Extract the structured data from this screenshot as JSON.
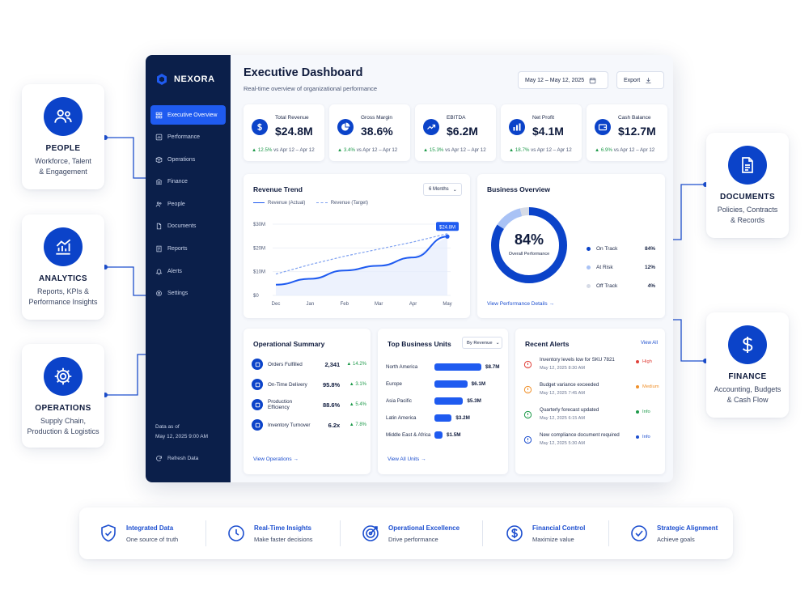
{
  "side_cards": {
    "people": {
      "title": "PEOPLE",
      "desc": "Workforce, Talent\n& Engagement"
    },
    "analytics": {
      "title": "ANALYTICS",
      "desc": "Reports, KPIs &\nPerformance Insights"
    },
    "operations": {
      "title": "OPERATIONS",
      "desc": "Supply Chain,\nProduction & Logistics"
    },
    "documents": {
      "title": "DOCUMENTS",
      "desc": "Policies, Contracts\n& Records"
    },
    "finance": {
      "title": "FINANCE",
      "desc": "Accounting, Budgets\n& Cash Flow"
    }
  },
  "app": {
    "brand": "NEXORA",
    "nav": [
      "Executive Overview",
      "Performance",
      "Operations",
      "Finance",
      "People",
      "Documents",
      "Reports",
      "Alerts",
      "Settings"
    ],
    "sync_label": "Data as of",
    "sync_time": "May 12, 2025 9:00 AM",
    "refresh_label": "Refresh Data",
    "title": "Executive Dashboard",
    "subtitle": "Real-time overview of organizational performance",
    "date_range": "May 12 – May 12, 2025",
    "export_label": "Export",
    "kpis": [
      {
        "label": "Total Revenue",
        "value": "$24.8M",
        "delta": "▲ 12.5%",
        "compare": "vs Apr 12 – Apr 12",
        "icon": "dollar-icon"
      },
      {
        "label": "Gross Margin",
        "value": "38.6%",
        "delta": "▲ 3.4%",
        "compare": "vs Apr 12 – Apr 12",
        "icon": "pie-icon"
      },
      {
        "label": "EBITDA",
        "value": "$6.2M",
        "delta": "▲ 15.3%",
        "compare": "vs Apr 12 – Apr 12",
        "icon": "trend-icon"
      },
      {
        "label": "Net Profit",
        "value": "$4.1M",
        "delta": "▲ 18.7%",
        "compare": "vs Apr 12 – Apr 12",
        "icon": "bars-icon"
      },
      {
        "label": "Cash Balance",
        "value": "$12.7M",
        "delta": "▲ 6.9%",
        "compare": "vs Apr 12 – Apr 12",
        "icon": "wallet-icon"
      }
    ],
    "revenue_trend": {
      "title": "Revenue Trend",
      "range": "6 Months",
      "legend_actual": "Revenue (Actual)",
      "legend_target": "Revenue (Target)",
      "callout": "$24.8M"
    },
    "business_overview": {
      "title": "Business Overview",
      "center_value": "84%",
      "center_label": "Overall Performance",
      "items": [
        {
          "label": "On Track",
          "value": "84%",
          "color": "#0b43c9"
        },
        {
          "label": "At Risk",
          "value": "12%",
          "color": "#a9c2f5"
        },
        {
          "label": "Off Track",
          "value": "4%",
          "color": "#d6dbe6"
        }
      ],
      "link": "View Performance Details →"
    },
    "ops_summary": {
      "title": "Operational Summary",
      "rows": [
        {
          "name": "Orders Fulfilled",
          "value": "2,341",
          "delta": "▲ 14.2%"
        },
        {
          "name": "On-Time Delivery",
          "value": "95.8%",
          "delta": "▲ 3.1%"
        },
        {
          "name": "Production Efficiency",
          "value": "88.6%",
          "delta": "▲ 5.4%"
        },
        {
          "name": "Inventory Turnover",
          "value": "6.2x",
          "delta": "▲ 7.8%"
        }
      ],
      "link": "View Operations →"
    },
    "business_units": {
      "title": "Top Business Units",
      "sort": "By Revenue",
      "rows": [
        {
          "name": "North America",
          "value": "$8.7M",
          "amount": 8.7
        },
        {
          "name": "Europe",
          "value": "$6.1M",
          "amount": 6.1
        },
        {
          "name": "Asia Pacific",
          "value": "$5.3M",
          "amount": 5.3
        },
        {
          "name": "Latin America",
          "value": "$3.2M",
          "amount": 3.2
        },
        {
          "name": "Middle East & Africa",
          "value": "$1.5M",
          "amount": 1.5
        }
      ],
      "link": "View All Units →"
    },
    "alerts": {
      "title": "Recent Alerts",
      "view_all": "View All",
      "rows": [
        {
          "text": "Inventory levels low for SKU 7821",
          "time": "May 12, 2025 8:30 AM",
          "severity": "High",
          "color": "#e0413a"
        },
        {
          "text": "Budget variance exceeded",
          "time": "May 12, 2025 7:45 AM",
          "severity": "Medium",
          "color": "#f0902a"
        },
        {
          "text": "Quarterly forecast updated",
          "time": "May 12, 2025 6:15 AM",
          "severity": "Info",
          "color": "#1e9a4a"
        },
        {
          "text": "New compliance document required",
          "time": "May 12, 2025 5:30 AM",
          "severity": "Info",
          "color": "#1d4fcf"
        }
      ]
    }
  },
  "chart_data": {
    "type": "line",
    "x": [
      "Dec",
      "Jan",
      "Feb",
      "Mar",
      "Apr",
      "May"
    ],
    "yticks": [
      "$0",
      "$10M",
      "$20M",
      "$30M"
    ],
    "ylim": [
      0,
      30
    ],
    "series": [
      {
        "name": "Revenue (Actual)",
        "values": [
          4.5,
          7.0,
          10.5,
          12.5,
          16.0,
          24.8
        ]
      },
      {
        "name": "Revenue (Target)",
        "values": [
          9.0,
          13.0,
          16.5,
          19.5,
          22.5,
          26.0
        ]
      }
    ]
  },
  "features": [
    {
      "title": "Integrated Data",
      "desc": "One source of truth",
      "icon": "shield-check-icon"
    },
    {
      "title": "Real-Time Insights",
      "desc": "Make faster decisions",
      "icon": "clock-icon"
    },
    {
      "title": "Operational Excellence",
      "desc": "Drive performance",
      "icon": "target-icon"
    },
    {
      "title": "Financial Control",
      "desc": "Maximize value",
      "icon": "dollar-circle-icon"
    },
    {
      "title": "Strategic Alignment",
      "desc": "Achieve goals",
      "icon": "check-circle-icon"
    }
  ]
}
